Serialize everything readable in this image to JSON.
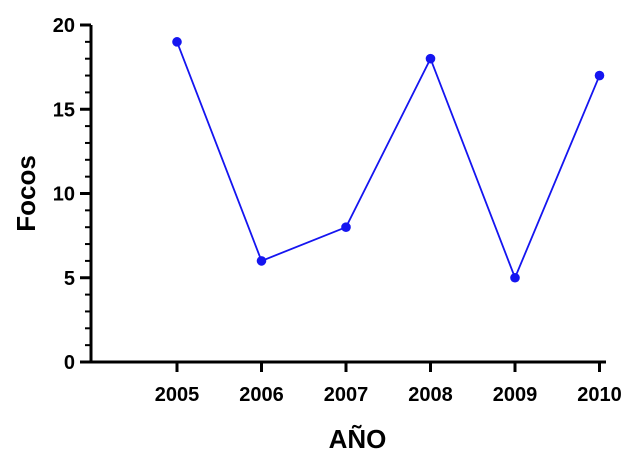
{
  "chart_data": {
    "type": "line",
    "title": "",
    "xlabel": "AÑO",
    "ylabel": "Focos",
    "x": [
      "2005",
      "2006",
      "2007",
      "2008",
      "2009",
      "2010"
    ],
    "series": [
      {
        "values": [
          19,
          6,
          8,
          18,
          5,
          17
        ],
        "color": "#1515f0"
      }
    ],
    "ylim": [
      0,
      20
    ],
    "y_ticks": [
      "0",
      "5",
      "10",
      "15",
      "20"
    ],
    "x_ticks": [
      "2005",
      "2006",
      "2007",
      "2008",
      "2009",
      "2010"
    ],
    "grid": false,
    "legend": "none",
    "markers": "circle"
  }
}
